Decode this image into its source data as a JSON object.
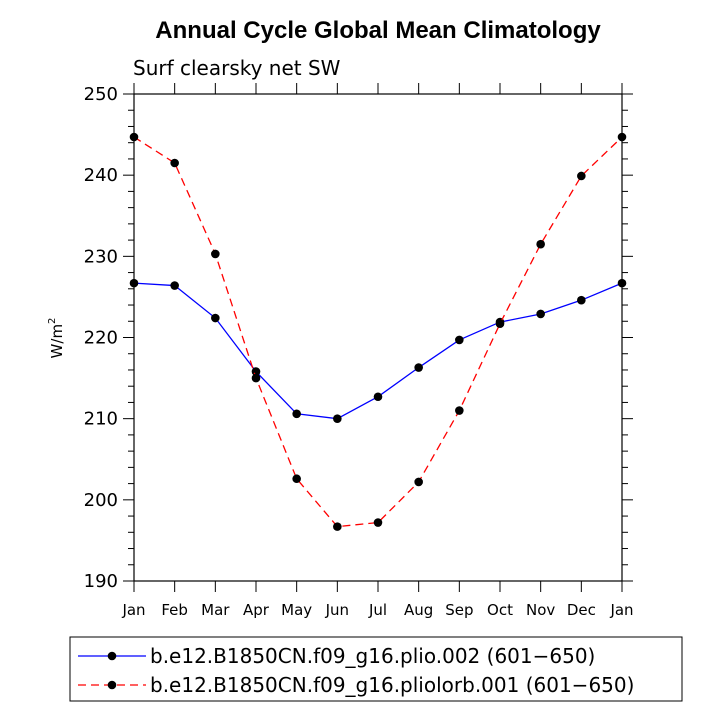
{
  "chart_data": {
    "type": "line",
    "title": "Annual Cycle Global Mean Climatology",
    "subtitle": "Surf clearsky net SW",
    "ylabel": "W/m",
    "ylabel_sup": "2",
    "xlabel": "",
    "ylim": [
      190,
      250
    ],
    "yticks": [
      190,
      200,
      210,
      220,
      230,
      240,
      250
    ],
    "yminor_step": 2,
    "categories": [
      "Jan",
      "Feb",
      "Mar",
      "Apr",
      "May",
      "Jun",
      "Jul",
      "Aug",
      "Sep",
      "Oct",
      "Nov",
      "Dec",
      "Jan"
    ],
    "series": [
      {
        "name": "b.e12.B1850CN.f09_g16.plio.002 (601−650)",
        "color": "#0000ff",
        "dash": "solid",
        "values": [
          226.7,
          226.4,
          222.4,
          215.8,
          210.6,
          210.0,
          212.7,
          216.3,
          219.7,
          221.9,
          222.9,
          224.6,
          226.7
        ]
      },
      {
        "name": "b.e12.B1850CN.f09_g16.pliolorb.001 (601−650)",
        "color": "#ff0000",
        "dash": "dashed",
        "values": [
          244.7,
          241.5,
          230.3,
          215.0,
          202.6,
          196.7,
          197.2,
          202.2,
          211.0,
          221.7,
          231.5,
          239.9,
          244.7
        ]
      }
    ],
    "marker_color": "#000000",
    "legend_position": "bottom"
  }
}
